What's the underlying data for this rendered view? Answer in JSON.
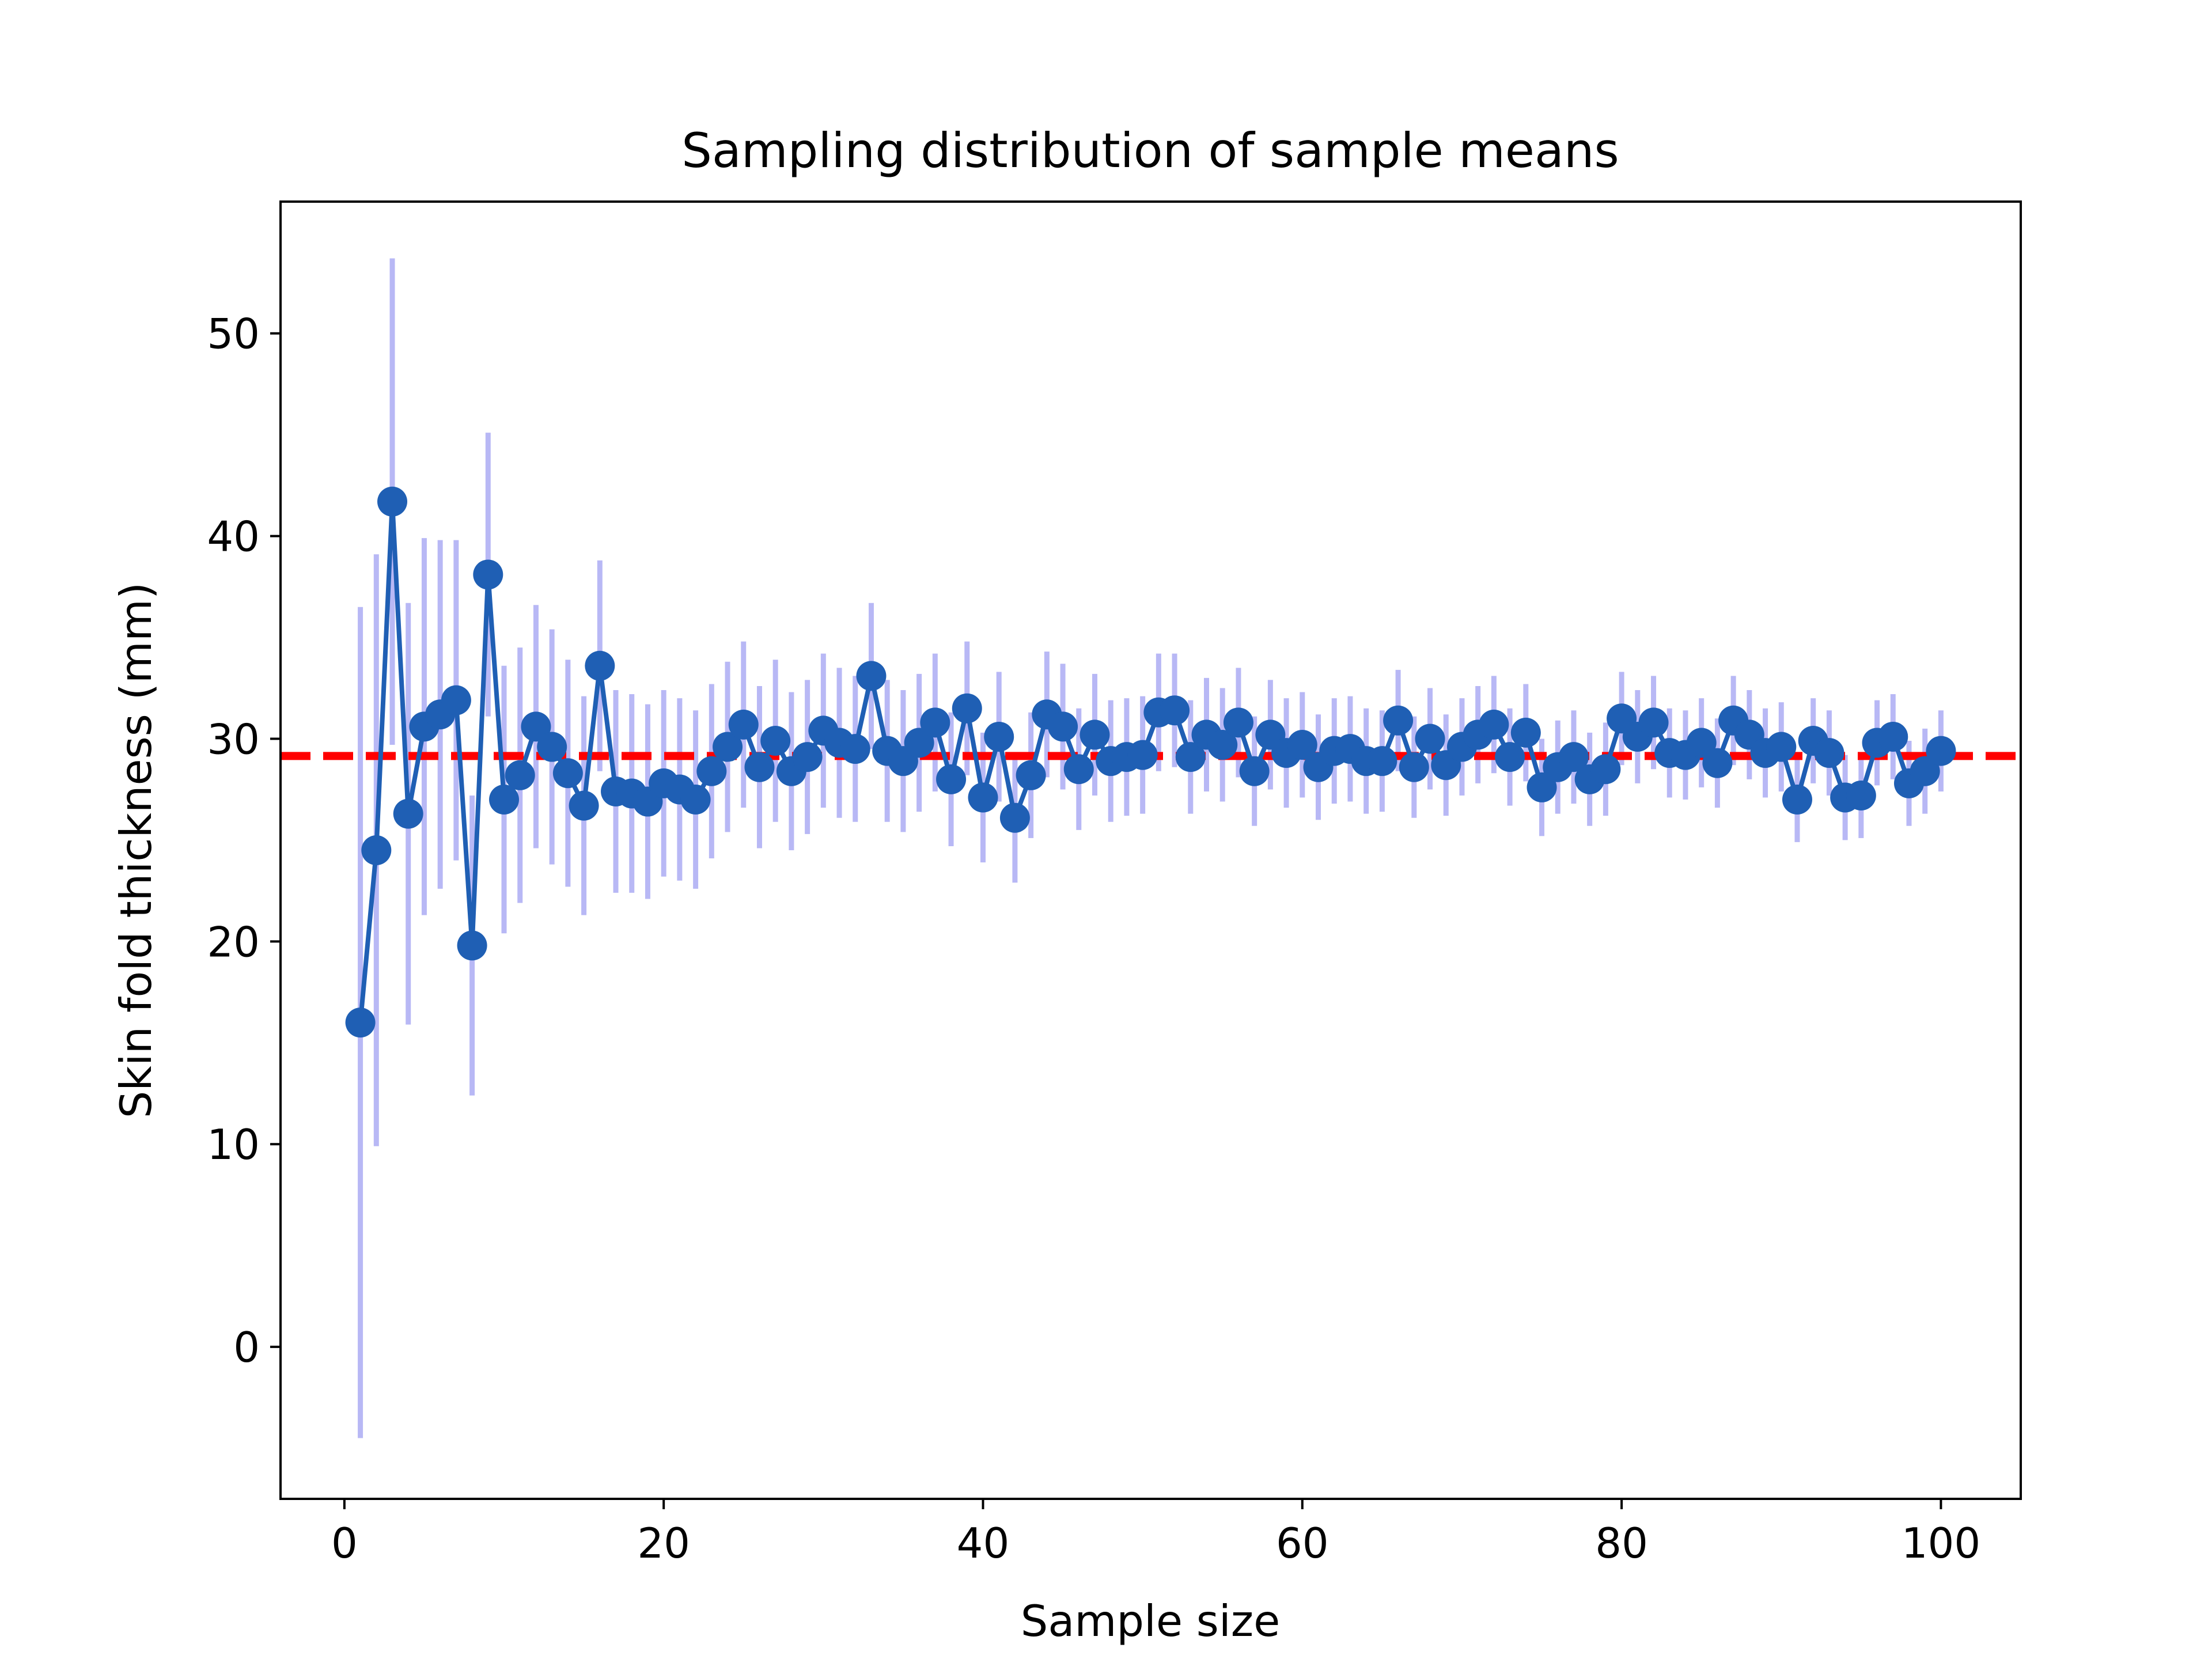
{
  "chart_data": {
    "type": "line",
    "title": "Sampling distribution of sample means",
    "xlabel": "Sample size",
    "ylabel": "Skin fold thickness (mm)",
    "xlim": [
      -4,
      105
    ],
    "ylim": [
      -7.5,
      56.5
    ],
    "xticks": [
      0,
      20,
      40,
      60,
      80,
      100
    ],
    "yticks": [
      0,
      10,
      20,
      30,
      40,
      50
    ],
    "grid": false,
    "reference_line": {
      "y": 29.15,
      "style": "dashed",
      "color": "#ff0000"
    },
    "colors": {
      "series": "#1f5fb4",
      "errorbar": "#b8b8f5",
      "reference": "#ff0000"
    },
    "series": [
      {
        "x": [
          1,
          2,
          3,
          4,
          5,
          6,
          7,
          8,
          9,
          10,
          11,
          12,
          13,
          14,
          15,
          16,
          17,
          18,
          19,
          20,
          21,
          22,
          23,
          24,
          25,
          26,
          27,
          28,
          29,
          30,
          31,
          32,
          33,
          34,
          35,
          36,
          37,
          38,
          39,
          40,
          41,
          42,
          43,
          44,
          45,
          46,
          47,
          48,
          49,
          50,
          51,
          52,
          53,
          54,
          55,
          56,
          57,
          58,
          59,
          60,
          61,
          62,
          63,
          64,
          65,
          66,
          67,
          68,
          69,
          70,
          71,
          72,
          73,
          74,
          75,
          76,
          77,
          78,
          79,
          80,
          81,
          82,
          83,
          84,
          85,
          86,
          87,
          88,
          89,
          90,
          91,
          92,
          93,
          94,
          95,
          96,
          97,
          98,
          99,
          100
        ],
        "values": [
          16.0,
          24.5,
          41.7,
          26.3,
          30.6,
          31.2,
          31.9,
          19.8,
          38.1,
          27.0,
          28.2,
          30.6,
          29.6,
          28.3,
          26.7,
          33.6,
          27.4,
          27.3,
          26.9,
          27.8,
          27.5,
          27.0,
          28.4,
          29.6,
          30.7,
          28.6,
          29.9,
          28.4,
          29.1,
          30.4,
          29.8,
          29.5,
          33.1,
          29.4,
          28.9,
          29.8,
          30.8,
          28.0,
          31.5,
          27.1,
          30.1,
          26.1,
          28.2,
          31.2,
          30.6,
          28.5,
          30.2,
          28.9,
          29.1,
          29.2,
          31.3,
          31.4,
          29.1,
          30.2,
          29.7,
          30.8,
          28.4,
          30.2,
          29.3,
          29.7,
          28.6,
          29.4,
          29.5,
          28.9,
          28.9,
          30.9,
          28.6,
          30.0,
          28.7,
          29.6,
          30.2,
          30.7,
          29.1,
          30.3,
          27.6,
          28.6,
          29.1,
          28.0,
          28.5,
          31.0,
          30.1,
          30.8,
          29.3,
          29.2,
          29.8,
          28.8,
          30.9,
          30.2,
          29.3,
          29.6,
          27.0,
          29.9,
          29.3,
          27.1,
          27.2,
          29.8,
          30.1,
          27.8,
          28.4,
          29.4
        ],
        "errors": [
          20.5,
          14.6,
          12.0,
          10.4,
          9.3,
          8.6,
          7.9,
          7.4,
          7.0,
          6.6,
          6.3,
          6.0,
          5.8,
          5.6,
          5.4,
          5.2,
          5.0,
          4.9,
          4.8,
          4.6,
          4.5,
          4.4,
          4.3,
          4.2,
          4.1,
          4.0,
          4.0,
          3.9,
          3.8,
          3.8,
          3.7,
          3.6,
          3.6,
          3.5,
          3.5,
          3.4,
          3.4,
          3.3,
          3.3,
          3.2,
          3.2,
          3.2,
          3.1,
          3.1,
          3.1,
          3.0,
          3.0,
          3.0,
          2.9,
          2.9,
          2.9,
          2.8,
          2.8,
          2.8,
          2.8,
          2.7,
          2.7,
          2.7,
          2.7,
          2.6,
          2.6,
          2.6,
          2.6,
          2.6,
          2.5,
          2.5,
          2.5,
          2.5,
          2.5,
          2.4,
          2.4,
          2.4,
          2.4,
          2.4,
          2.4,
          2.3,
          2.3,
          2.3,
          2.3,
          2.3,
          2.3,
          2.3,
          2.2,
          2.2,
          2.2,
          2.2,
          2.2,
          2.2,
          2.2,
          2.2,
          2.1,
          2.1,
          2.1,
          2.1,
          2.1,
          2.1,
          2.1,
          2.1,
          2.1,
          2.0
        ]
      }
    ]
  }
}
